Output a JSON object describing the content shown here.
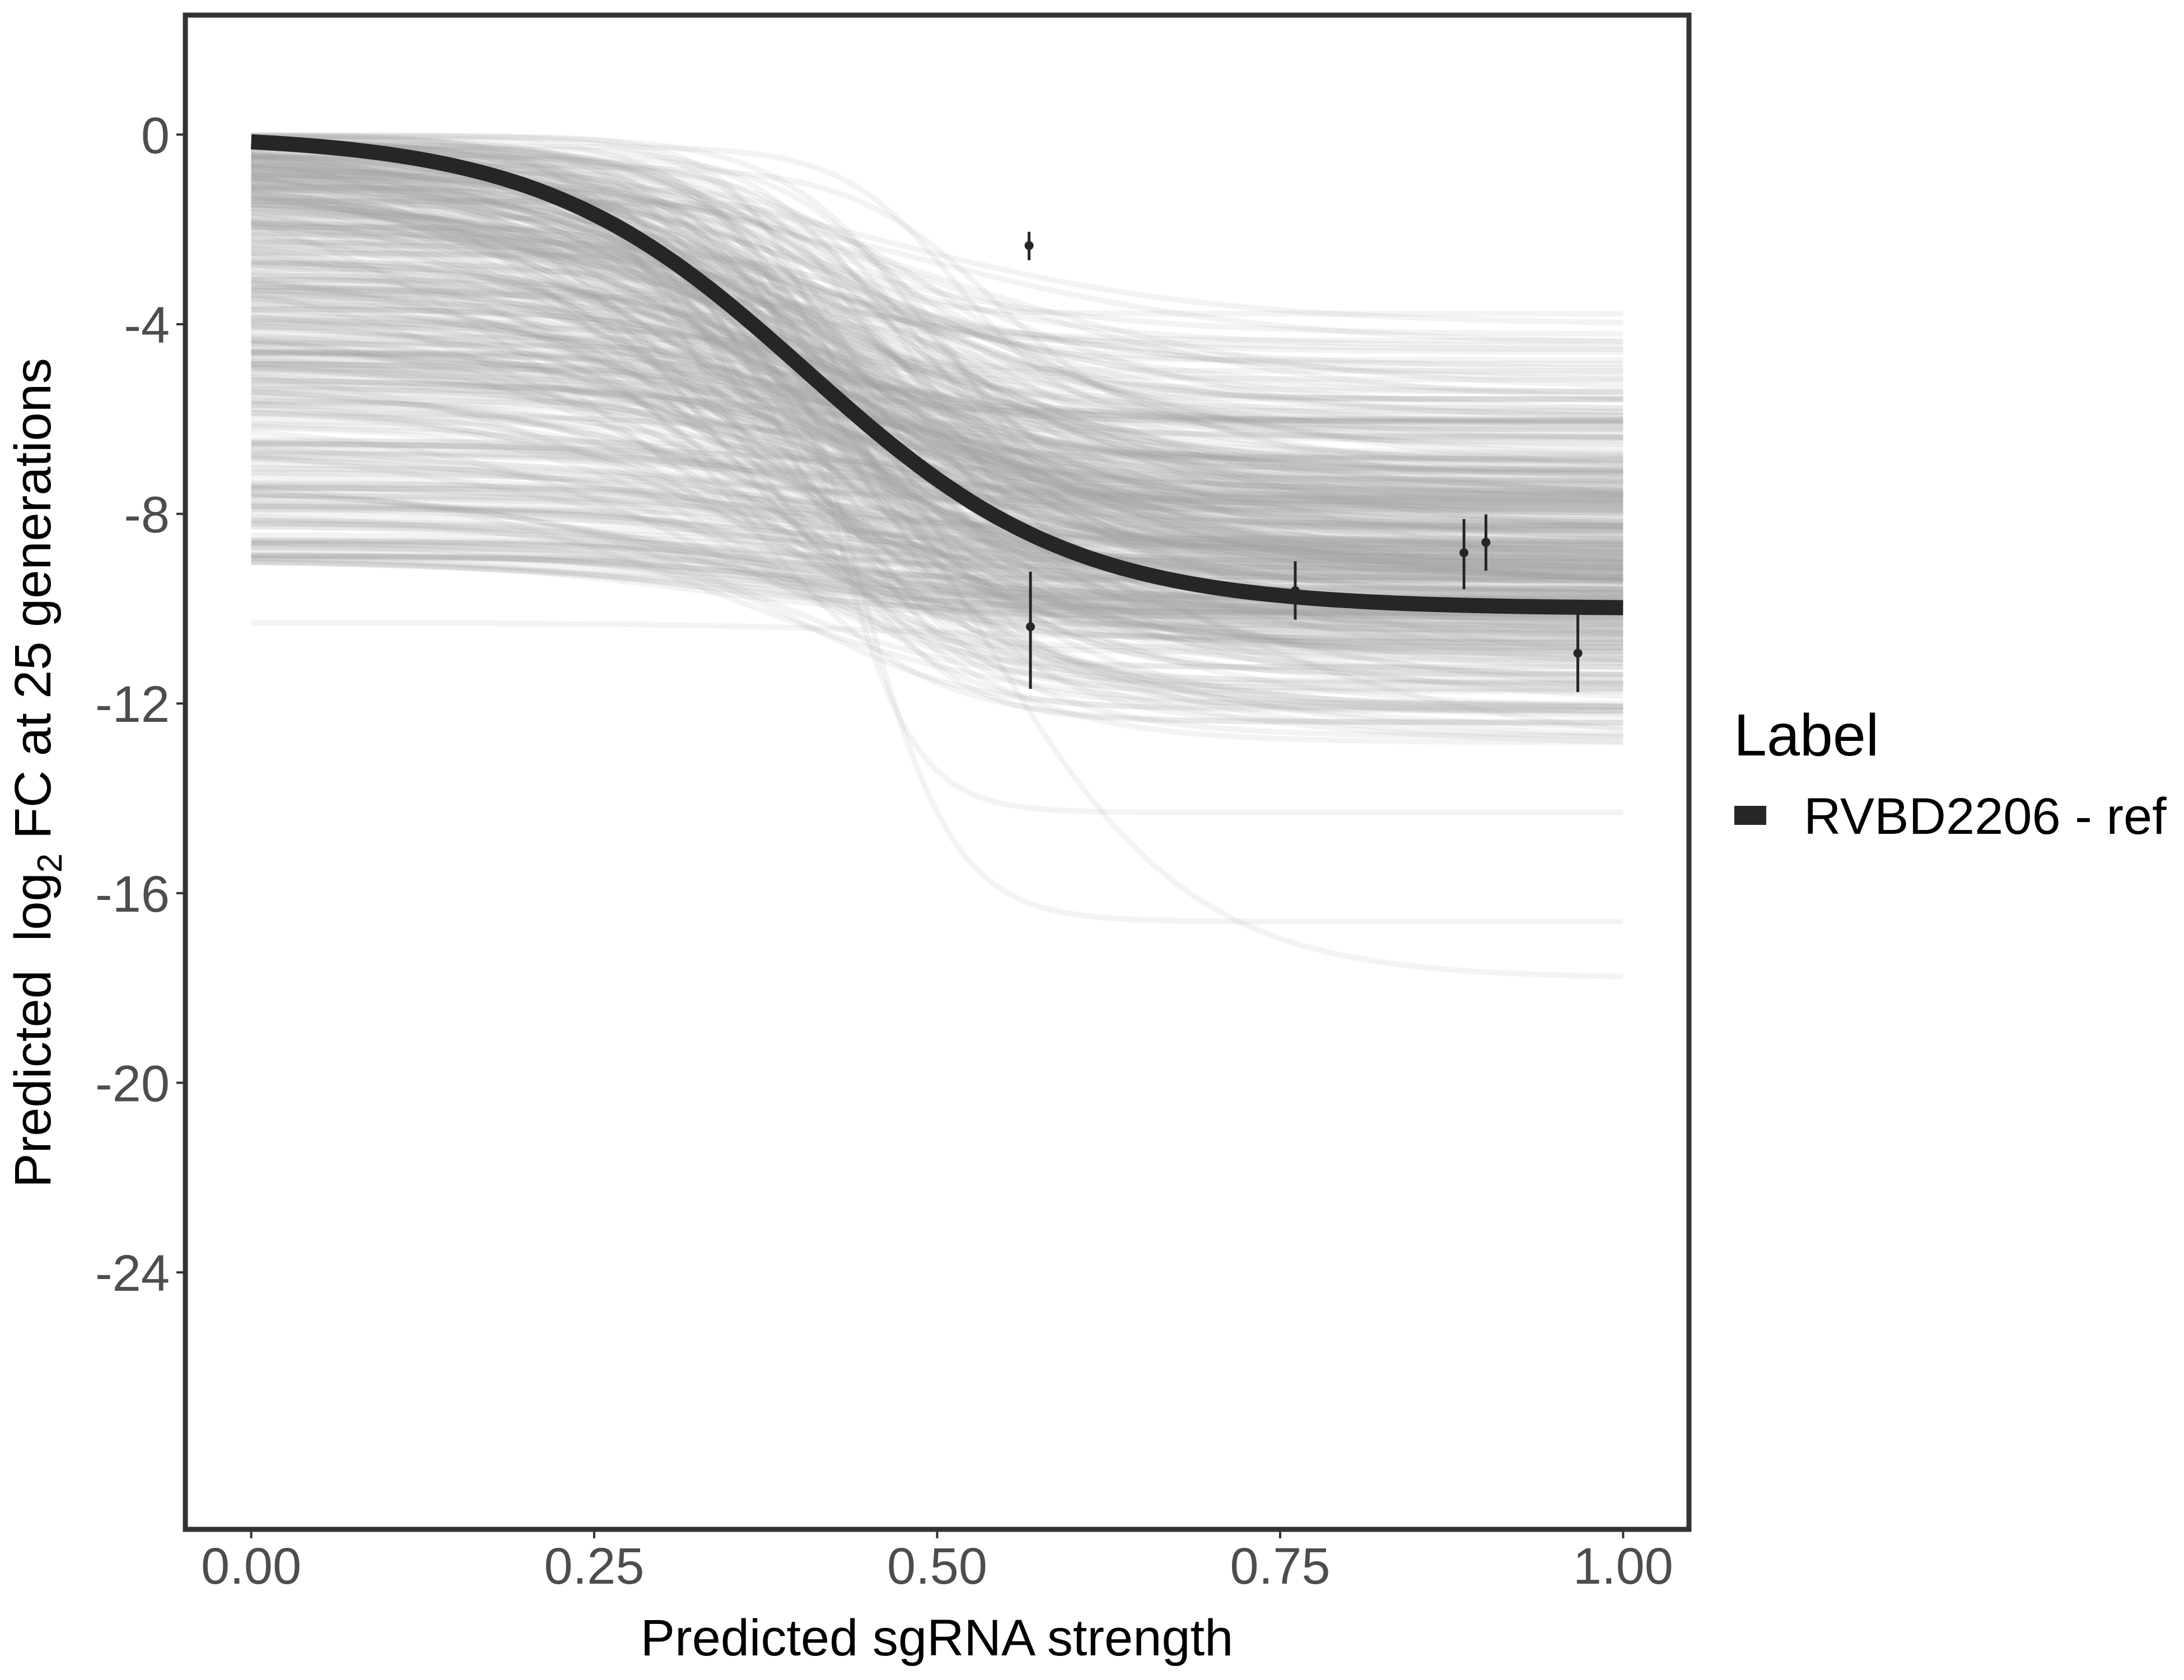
{
  "chart_data": {
    "type": "line",
    "title": "",
    "xlabel": "Predicted sgRNA strength",
    "ylabel_parts": {
      "before": "Predicted  log",
      "subscript": "2",
      "after": " FC at 25 generations"
    },
    "xlim": [
      -0.048,
      1.048
    ],
    "ylim": [
      -29.42,
      2.52
    ],
    "grid": false,
    "x_ticks": [
      {
        "value": 0.0,
        "label": "0.00"
      },
      {
        "value": 0.25,
        "label": "0.25"
      },
      {
        "value": 0.5,
        "label": "0.50"
      },
      {
        "value": 0.75,
        "label": "0.75"
      },
      {
        "value": 1.0,
        "label": "1.00"
      }
    ],
    "y_ticks": [
      {
        "value": 0,
        "label": "0"
      },
      {
        "value": -4,
        "label": "-4"
      },
      {
        "value": -8,
        "label": "-8"
      },
      {
        "value": -12,
        "label": "-12"
      },
      {
        "value": -16,
        "label": "-16"
      },
      {
        "value": -20,
        "label": "-20"
      },
      {
        "value": -24,
        "label": "-24"
      }
    ],
    "legend": {
      "title": "Label",
      "position": "right",
      "entries": [
        {
          "label": "RVBD2206 - ref",
          "color": "#262626"
        }
      ]
    },
    "series": [
      {
        "name": "RVBD2206 - ref",
        "kind": "fitted-logistic-curve",
        "color": "#262626",
        "x_range": [
          0,
          1
        ],
        "params": {
          "start": 0,
          "end": -10.0,
          "midpoint": 0.405,
          "scale": 0.097
        }
      }
    ],
    "observations": [
      {
        "x": 0.567,
        "y": -2.34,
        "ymin": -2.65,
        "ymax": -2.05
      },
      {
        "x": 0.568,
        "y": -10.38,
        "ymin": -11.69,
        "ymax": -9.22
      },
      {
        "x": 0.761,
        "y": -9.62,
        "ymin": -10.23,
        "ymax": -9.0
      },
      {
        "x": 0.884,
        "y": -8.82,
        "ymin": -9.59,
        "ymax": -8.11
      },
      {
        "x": 0.9,
        "y": -8.6,
        "ymin": -9.2,
        "ymax": -8.01
      },
      {
        "x": 0.967,
        "y": -10.94,
        "ymin": -11.76,
        "ymax": -10.12
      }
    ],
    "posterior_draws": {
      "count": 420,
      "color": "#a6a6a6",
      "start_range": [
        0,
        -9.0
      ],
      "end_range": [
        -3.4,
        -14.5
      ],
      "midpoint_range": [
        0.28,
        0.56
      ],
      "scale_range": [
        0.035,
        0.16
      ],
      "outliers": [
        {
          "start": -10.3,
          "end": -10.6,
          "midpoint": 0.45,
          "scale": 0.08
        },
        {
          "start": -1.5,
          "end": -16.6,
          "midpoint": 0.44,
          "scale": 0.035
        },
        {
          "start": -2.0,
          "end": -17.8,
          "midpoint": 0.52,
          "scale": 0.08
        },
        {
          "start": -0.8,
          "end": -14.3,
          "midpoint": 0.42,
          "scale": 0.03
        }
      ]
    }
  }
}
